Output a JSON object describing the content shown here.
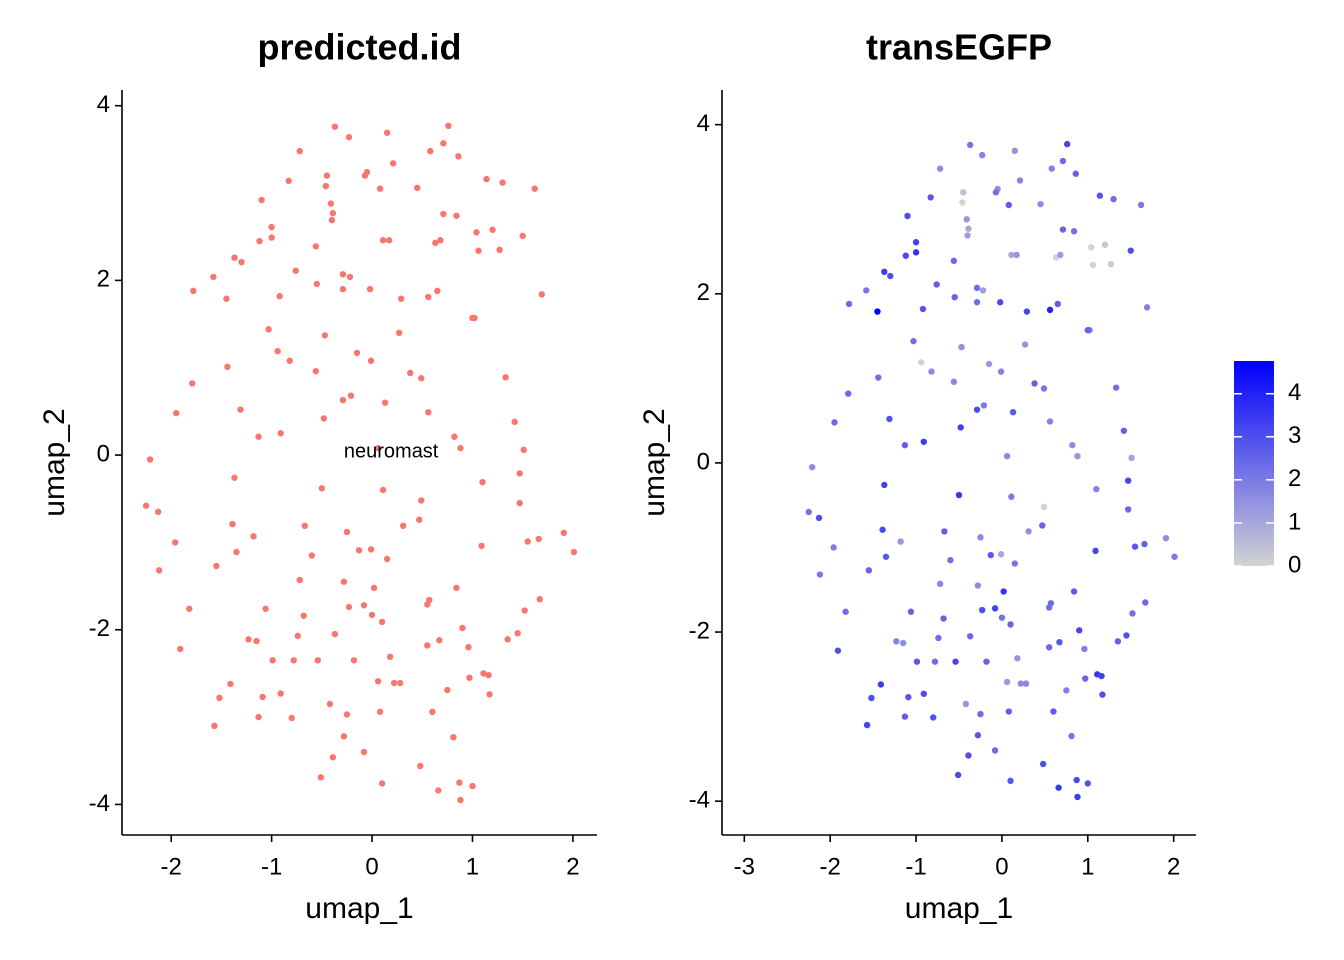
{
  "chart_data": [
    {
      "type": "scatter",
      "title": "predicted.id",
      "xlabel": "umap_1",
      "ylabel": "umap_2",
      "xlim": [
        -2.49,
        2.24
      ],
      "ylim": [
        -4.35,
        4.18
      ],
      "xticks": [
        -2,
        -1,
        0,
        1,
        2
      ],
      "yticks": [
        -4,
        -2,
        0,
        2,
        4
      ],
      "color": "#F8766D",
      "annotations": [
        {
          "text": "neuromast",
          "x": 0.19,
          "y": 0.03
        }
      ],
      "x": [
        -0.37,
        -0.23,
        0.15,
        0.76,
        -0.72,
        0.58,
        0.86,
        0.71,
        0.21,
        -0.05,
        -0.07,
        -0.45,
        -0.83,
        1.14,
        1.3,
        1.62,
        -0.46,
        0.45,
        0.08,
        -1.1,
        -0.41,
        -0.39,
        -0.4,
        0.71,
        0.84,
        -1.0,
        1.04,
        1.2,
        1.5,
        0.63,
        0.68,
        0.11,
        0.17,
        -0.56,
        -1.12,
        -1.0,
        -1.37,
        -1.3,
        1.27,
        1.06,
        -1.58,
        -0.76,
        -0.29,
        -0.22,
        -1.45,
        -1.78,
        -0.92,
        -0.55,
        0.29,
        0.56,
        0.65,
        1.02,
        1.0,
        1.69,
        -0.29,
        -0.02,
        -0.47,
        0.27,
        -1.03,
        -0.94,
        -0.82,
        -0.01,
        -0.15,
        0.38,
        -0.56,
        -1.44,
        -1.79,
        0.49,
        1.33,
        -0.21,
        -0.29,
        0.13,
        -0.48,
        0.56,
        -1.31,
        -1.95,
        1.42,
        -0.91,
        -1.13,
        0.82,
        0.06,
        0.88,
        -2.21,
        1.47,
        1.51,
        -1.37,
        -0.5,
        0.11,
        1.1,
        -1.35,
        -1.96,
        -2.12,
        -2.25,
        -2.13,
        -1.39,
        -1.18,
        -0.67,
        -0.25,
        0.31,
        0.49,
        -0.13,
        -0.01,
        1.09,
        1.55,
        1.66,
        0.47,
        1.47,
        2.01,
        1.91,
        0.15,
        -1.55,
        -0.6,
        -0.28,
        -0.72,
        -0.23,
        -0.08,
        0.02,
        -0.68,
        0.0,
        0.57,
        0.84,
        0.55,
        1.67,
        1.52,
        -1.82,
        -1.06,
        -1.91,
        -1.23,
        -1.15,
        -0.74,
        0.1,
        0.9,
        1.35,
        0.67,
        1.45,
        -0.37,
        -0.99,
        -0.78,
        -0.54,
        -0.18,
        0.18,
        0.55,
        0.96,
        1.11,
        1.16,
        -1.41,
        -1.52,
        -1.09,
        -0.91,
        -0.42,
        0.06,
        0.22,
        0.28,
        0.75,
        1.17,
        0.97,
        -1.13,
        -1.57,
        -0.8,
        -0.25,
        0.08,
        0.6,
        0.81,
        -0.28,
        -0.08,
        -0.51,
        0.48,
        0.1,
        0.87,
        0.66,
        1.0,
        0.88,
        -0.39
      ],
      "y": [
        3.76,
        3.64,
        3.69,
        3.77,
        3.48,
        3.48,
        3.42,
        3.57,
        3.34,
        3.24,
        3.2,
        3.2,
        3.14,
        3.16,
        3.12,
        3.05,
        3.08,
        3.06,
        3.05,
        2.92,
        2.88,
        2.77,
        2.69,
        2.76,
        2.74,
        2.61,
        2.55,
        2.58,
        2.51,
        2.43,
        2.46,
        2.46,
        2.46,
        2.39,
        2.45,
        2.49,
        2.26,
        2.21,
        2.35,
        2.34,
        2.04,
        2.11,
        2.07,
        2.04,
        1.79,
        1.88,
        1.82,
        1.96,
        1.79,
        1.81,
        1.88,
        1.57,
        1.57,
        1.84,
        1.9,
        1.9,
        1.37,
        1.4,
        1.44,
        1.19,
        1.08,
        1.08,
        1.17,
        0.94,
        0.96,
        1.01,
        0.82,
        0.88,
        0.89,
        0.68,
        0.63,
        0.6,
        0.42,
        0.49,
        0.52,
        0.48,
        0.38,
        0.25,
        0.21,
        0.21,
        0.08,
        0.08,
        -0.05,
        -0.21,
        0.06,
        -0.26,
        -0.38,
        -0.4,
        -0.31,
        -1.11,
        -1.0,
        -1.32,
        -0.58,
        -0.65,
        -0.79,
        -0.93,
        -0.81,
        -0.88,
        -0.81,
        -0.52,
        -1.09,
        -1.08,
        -1.04,
        -0.99,
        -0.96,
        -0.74,
        -0.55,
        -1.11,
        -0.89,
        -1.19,
        -1.27,
        -1.15,
        -1.45,
        -1.43,
        -1.74,
        -1.72,
        -1.52,
        -1.84,
        -1.83,
        -1.66,
        -1.52,
        -1.71,
        -1.65,
        -1.78,
        -1.76,
        -1.76,
        -2.22,
        -2.11,
        -2.13,
        -2.07,
        -1.91,
        -1.98,
        -2.11,
        -2.12,
        -2.04,
        -2.05,
        -2.35,
        -2.35,
        -2.35,
        -2.35,
        -2.31,
        -2.18,
        -2.2,
        -2.5,
        -2.52,
        -2.62,
        -2.78,
        -2.77,
        -2.73,
        -2.85,
        -2.59,
        -2.61,
        -2.61,
        -2.69,
        -2.74,
        -2.55,
        -3.0,
        -3.1,
        -3.01,
        -2.97,
        -2.94,
        -2.94,
        -3.23,
        -3.22,
        -3.4,
        -3.69,
        -3.56,
        -3.76,
        -3.75,
        -3.84,
        -3.79,
        -3.95,
        -3.46
      ]
    },
    {
      "type": "scatter",
      "title": "transEGFP",
      "xlabel": "umap_1",
      "ylabel": "umap_2",
      "xlim": [
        -3.26,
        2.26
      ],
      "ylim": [
        -4.4,
        4.41
      ],
      "xticks": [
        -3,
        -2,
        -1,
        0,
        1,
        2
      ],
      "yticks": [
        -4,
        -2,
        0,
        2,
        4
      ],
      "colorscale": {
        "low": "#d3d3d3",
        "high": "#0000ff",
        "lim": [
          0,
          4.76
        ],
        "ticks": [
          0,
          1,
          2,
          3,
          4
        ]
      },
      "x": [
        -0.37,
        -0.23,
        0.15,
        0.76,
        -0.72,
        0.58,
        0.86,
        0.71,
        0.21,
        -0.05,
        -0.07,
        -0.45,
        -0.83,
        1.14,
        1.3,
        1.62,
        -0.46,
        0.45,
        0.08,
        -1.1,
        -0.41,
        -0.39,
        -0.4,
        0.71,
        0.84,
        -1.0,
        1.04,
        1.2,
        1.5,
        0.63,
        0.68,
        0.11,
        0.17,
        -0.56,
        -1.12,
        -1.0,
        -1.37,
        -1.3,
        1.27,
        1.06,
        -1.58,
        -0.76,
        -0.29,
        -0.22,
        -1.45,
        -1.78,
        -0.92,
        -0.55,
        0.29,
        0.56,
        0.65,
        1.02,
        1.0,
        1.69,
        -0.29,
        -0.02,
        -0.47,
        0.27,
        -1.03,
        -0.94,
        -0.82,
        -0.01,
        -0.15,
        0.38,
        -0.56,
        -1.44,
        -1.79,
        0.49,
        1.33,
        -0.21,
        -0.29,
        0.13,
        -0.48,
        0.56,
        -1.31,
        -1.95,
        1.42,
        -0.91,
        -1.13,
        0.82,
        0.06,
        0.88,
        -2.21,
        1.47,
        1.51,
        -1.37,
        -0.5,
        0.11,
        1.1,
        -1.35,
        -1.96,
        -2.12,
        -2.25,
        -2.13,
        -1.39,
        -1.18,
        -0.67,
        -0.25,
        0.31,
        0.49,
        -0.13,
        -0.01,
        1.09,
        1.55,
        1.66,
        0.47,
        1.47,
        2.01,
        1.91,
        0.15,
        -1.55,
        -0.6,
        -0.28,
        -0.72,
        -0.23,
        -0.08,
        0.02,
        -0.68,
        0.0,
        0.57,
        0.84,
        0.55,
        1.67,
        1.52,
        -1.82,
        -1.06,
        -1.91,
        -1.23,
        -1.15,
        -0.74,
        0.1,
        0.9,
        1.35,
        0.67,
        1.45,
        -0.37,
        -0.99,
        -0.78,
        -0.54,
        -0.18,
        0.18,
        0.55,
        0.96,
        1.11,
        1.16,
        -1.41,
        -1.52,
        -1.09,
        -0.91,
        -0.42,
        0.06,
        0.22,
        0.28,
        0.75,
        1.17,
        0.97,
        -1.13,
        -1.57,
        -0.8,
        -0.25,
        0.08,
        0.6,
        0.81,
        -0.28,
        -0.08,
        -0.51,
        0.48,
        0.1,
        0.87,
        0.66,
        1.0,
        0.88,
        -0.39
      ],
      "y": [
        3.76,
        3.64,
        3.69,
        3.77,
        3.48,
        3.48,
        3.42,
        3.57,
        3.34,
        3.24,
        3.2,
        3.2,
        3.14,
        3.16,
        3.12,
        3.05,
        3.08,
        3.06,
        3.05,
        2.92,
        2.88,
        2.77,
        2.69,
        2.76,
        2.74,
        2.61,
        2.55,
        2.58,
        2.51,
        2.43,
        2.46,
        2.46,
        2.46,
        2.39,
        2.45,
        2.49,
        2.26,
        2.21,
        2.35,
        2.34,
        2.04,
        2.11,
        2.07,
        2.04,
        1.79,
        1.88,
        1.82,
        1.96,
        1.79,
        1.81,
        1.88,
        1.57,
        1.57,
        1.84,
        1.9,
        1.9,
        1.37,
        1.4,
        1.44,
        1.19,
        1.08,
        1.08,
        1.17,
        0.94,
        0.96,
        1.01,
        0.82,
        0.88,
        0.89,
        0.68,
        0.63,
        0.6,
        0.42,
        0.49,
        0.52,
        0.48,
        0.38,
        0.25,
        0.21,
        0.21,
        0.08,
        0.08,
        -0.05,
        -0.21,
        0.06,
        -0.26,
        -0.38,
        -0.4,
        -0.31,
        -1.11,
        -1.0,
        -1.32,
        -0.58,
        -0.65,
        -0.79,
        -0.93,
        -0.81,
        -0.88,
        -0.81,
        -0.52,
        -1.09,
        -1.08,
        -1.04,
        -0.99,
        -0.96,
        -0.74,
        -0.55,
        -1.11,
        -0.89,
        -1.19,
        -1.27,
        -1.15,
        -1.45,
        -1.43,
        -1.74,
        -1.72,
        -1.52,
        -1.84,
        -1.83,
        -1.66,
        -1.52,
        -1.71,
        -1.65,
        -1.78,
        -1.76,
        -1.76,
        -2.22,
        -2.11,
        -2.13,
        -2.07,
        -1.91,
        -1.98,
        -2.11,
        -2.12,
        -2.04,
        -2.05,
        -2.35,
        -2.35,
        -2.35,
        -2.35,
        -2.31,
        -2.18,
        -2.2,
        -2.5,
        -2.52,
        -2.62,
        -2.78,
        -2.77,
        -2.73,
        -2.85,
        -2.59,
        -2.61,
        -2.61,
        -2.69,
        -2.74,
        -2.55,
        -3.0,
        -3.1,
        -3.01,
        -2.97,
        -2.94,
        -2.94,
        -3.23,
        -3.22,
        -3.4,
        -3.69,
        -3.56,
        -3.76,
        -3.75,
        -3.84,
        -3.79,
        -3.95,
        -3.46
      ],
      "values": [
        2.1,
        1.8,
        1.5,
        3.2,
        1.6,
        1.9,
        2.6,
        2.4,
        1.7,
        1.5,
        2.2,
        0.5,
        2.8,
        2.9,
        2.3,
        2.0,
        0,
        1.6,
        2.7,
        3.1,
        1.4,
        1.0,
        1.2,
        2.5,
        2.2,
        3.3,
        0,
        0.3,
        3.0,
        0,
        1.3,
        1.0,
        1.4,
        2.4,
        3.1,
        3.6,
        3.4,
        3.0,
        0.2,
        0,
        2.1,
        2.6,
        2.3,
        1.2,
        4.7,
        2.4,
        2.9,
        2.5,
        3.2,
        4.0,
        2.7,
        2.0,
        2.5,
        1.9,
        2.2,
        3.1,
        1.5,
        1.4,
        2.2,
        0,
        1.6,
        1.8,
        1.3,
        2.6,
        1.7,
        2.3,
        2.4,
        2.1,
        2.2,
        2.0,
        3.0,
        2.7,
        3.3,
        1.8,
        2.9,
        2.4,
        2.5,
        3.4,
        2.6,
        1.6,
        1.7,
        1.4,
        1.6,
        3.2,
        1.1,
        3.3,
        3.5,
        2.0,
        1.8,
        2.8,
        1.9,
        2.0,
        2.1,
        3.0,
        3.1,
        1.4,
        2.6,
        1.7,
        1.5,
        0,
        2.7,
        1.0,
        3.2,
        2.8,
        2.5,
        2.5,
        2.4,
        2.0,
        1.5,
        2.1,
        2.5,
        2.2,
        1.6,
        1.7,
        3.0,
        3.3,
        3.6,
        2.5,
        2.2,
        2.4,
        2.7,
        2.3,
        2.4,
        2.2,
        2.3,
        2.5,
        3.0,
        1.8,
        1.6,
        2.3,
        2.5,
        3.2,
        2.6,
        2.8,
        2.9,
        2.4,
        2.8,
        2.3,
        3.2,
        2.5,
        1.4,
        2.4,
        1.9,
        3.5,
        3.3,
        3.4,
        3.0,
        2.8,
        3.1,
        1.4,
        1.3,
        1.6,
        1.7,
        1.9,
        3.0,
        2.4,
        2.6,
        3.3,
        2.9,
        2.3,
        2.6,
        2.7,
        2.1,
        2.8,
        2.4,
        3.1,
        3.0,
        2.8,
        3.2,
        3.5,
        2.9,
        3.4,
        3.0
      ]
    }
  ]
}
